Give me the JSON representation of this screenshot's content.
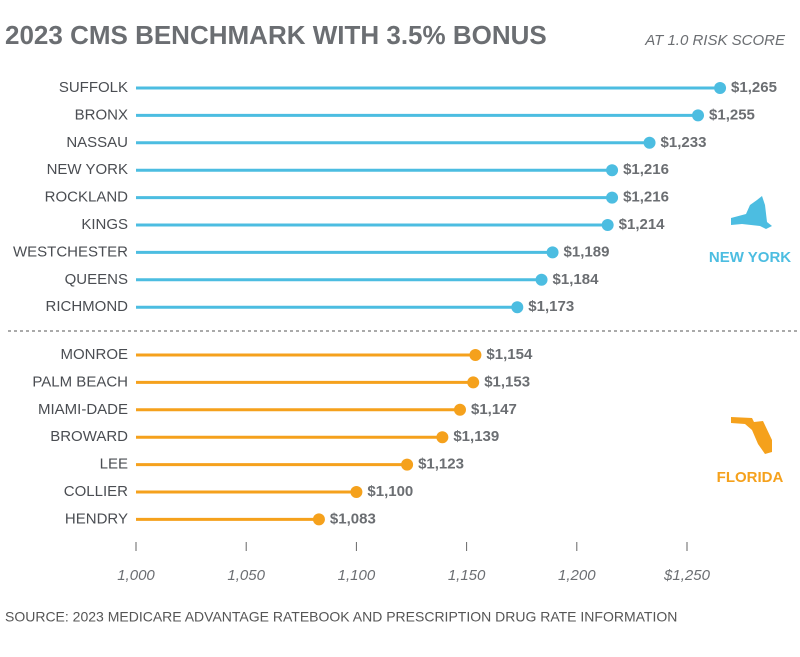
{
  "chart_data": {
    "type": "lollipop",
    "title": "2023 CMS BENCHMARK WITH 3.5% BONUS",
    "subtitle": "AT 1.0 RISK SCORE",
    "source": "SOURCE: 2023 MEDICARE ADVANTAGE RATEBOOK AND PRESCRIPTION DRUG RATE INFORMATION",
    "groups": [
      {
        "name": "NEW YORK",
        "color": "#4cbde1",
        "categories": [
          "SUFFOLK",
          "BRONX",
          "NASSAU",
          "NEW YORK",
          "ROCKLAND",
          "KINGS",
          "WESTCHESTER",
          "QUEENS",
          "RICHMOND"
        ],
        "values": [
          1265,
          1255,
          1233,
          1216,
          1216,
          1214,
          1189,
          1184,
          1173
        ],
        "value_labels": [
          "$1,265",
          "$1,255",
          "$1,233",
          "$1,216",
          "$1,216",
          "$1,214",
          "$1,189",
          "$1,184",
          "$1,173"
        ]
      },
      {
        "name": "FLORIDA",
        "color": "#f5a11c",
        "categories": [
          "MONROE",
          "PALM BEACH",
          "MIAMI-DADE",
          "BROWARD",
          "LEE",
          "COLLIER",
          "HENDRY"
        ],
        "values": [
          1154,
          1153,
          1147,
          1139,
          1123,
          1100,
          1083
        ],
        "value_labels": [
          "$1,154",
          "$1,153",
          "$1,147",
          "$1,139",
          "$1,123",
          "$1,100",
          "$1,083"
        ]
      }
    ],
    "xlim": [
      1000,
      1290
    ],
    "xticks": [
      {
        "value": 1000,
        "label": "1,000"
      },
      {
        "value": 1050,
        "label": "1,050"
      },
      {
        "value": 1100,
        "label": "1,100"
      },
      {
        "value": 1150,
        "label": "1,150"
      },
      {
        "value": 1200,
        "label": "1,200"
      },
      {
        "value": 1250,
        "label": "$1,250"
      }
    ]
  }
}
